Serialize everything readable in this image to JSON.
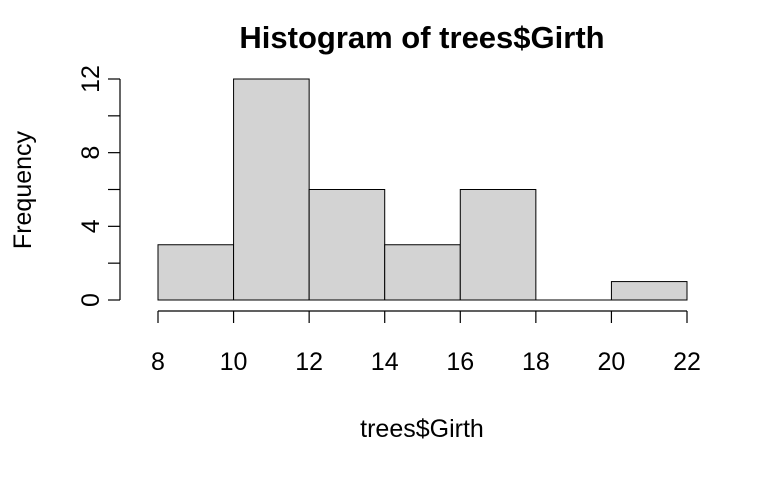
{
  "chart_data": {
    "type": "bar",
    "title": "Histogram of trees$Girth",
    "xlabel": "trees$Girth",
    "ylabel": "Frequency",
    "bins": [
      {
        "from": 8,
        "to": 10,
        "count": 3
      },
      {
        "from": 10,
        "to": 12,
        "count": 12
      },
      {
        "from": 12,
        "to": 14,
        "count": 6
      },
      {
        "from": 14,
        "to": 16,
        "count": 3
      },
      {
        "from": 16,
        "to": 18,
        "count": 6
      },
      {
        "from": 18,
        "to": 20,
        "count": 0
      },
      {
        "from": 20,
        "to": 22,
        "count": 1
      }
    ],
    "xlim": [
      8,
      22
    ],
    "ylim": [
      0,
      12
    ],
    "x_ticks": [
      8,
      10,
      12,
      14,
      16,
      18,
      20,
      22
    ],
    "y_ticks_labeled": [
      0,
      4,
      8,
      12
    ],
    "y_ticks": [
      0,
      2,
      4,
      6,
      8,
      10,
      12
    ],
    "bar_color": "#d3d3d3",
    "border_color": "#000000",
    "grid": false
  }
}
